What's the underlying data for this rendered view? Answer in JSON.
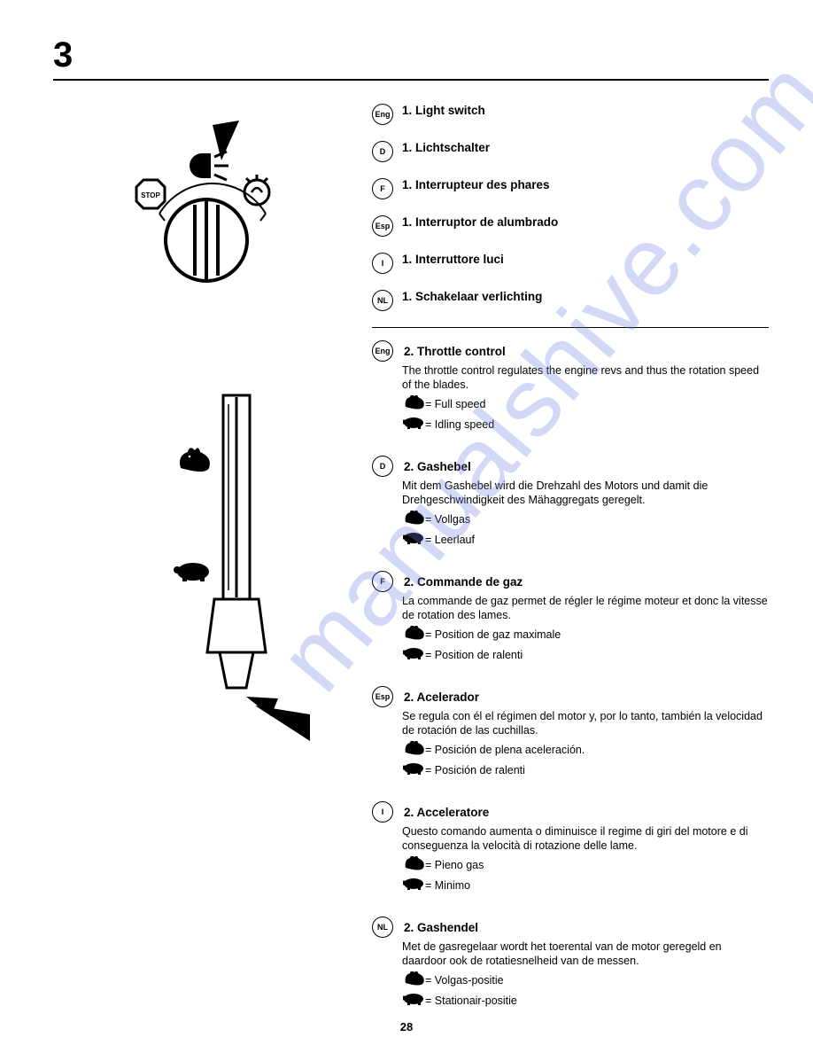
{
  "chapter_number": "3",
  "page_number": "28",
  "watermark_text": "manualshive.com",
  "watermark_color": "#6d7fe0",
  "section1": {
    "items": [
      {
        "code": "Eng",
        "title": "1. Light switch"
      },
      {
        "code": "D",
        "title": "1. Lichtschalter"
      },
      {
        "code": "F",
        "title": "1. Interrupteur des phares"
      },
      {
        "code": "Esp",
        "title": "1. Interruptor de alumbrado"
      },
      {
        "code": "I",
        "title": "1. Interruttore luci"
      },
      {
        "code": "NL",
        "title": "1. Schakelaar verlichting"
      }
    ]
  },
  "section2": {
    "blocks": [
      {
        "code": "Eng",
        "title": "2. Throttle control",
        "desc": "The throttle control regulates the engine revs and thus the rotation speed of the blades.",
        "full": "= Full speed",
        "idle": "= Idling speed"
      },
      {
        "code": "D",
        "title": "2. Gashebel",
        "desc": "Mit dem Gashebel wird die Drehzahl des Motors und damit die Drehgeschwindigkeit des Mähaggregats geregelt.",
        "full": "= Vollgas",
        "idle": "= Leerlauf"
      },
      {
        "code": "F",
        "title": "2. Commande de gaz",
        "desc": "La commande de gaz permet de régler le régime moteur et donc la vitesse de rotation des lames.",
        "full": "= Position de gaz maximale",
        "idle": "= Position de ralenti"
      },
      {
        "code": "Esp",
        "title": "2. Acelerador",
        "desc": "Se regula con él el régimen del motor y, por lo tanto, también la velocidad de rotación de las cuchillas.",
        "full": "= Posición de plena aceleración.",
        "idle": "= Posición de ralenti"
      },
      {
        "code": "I",
        "title": "2. Acceleratore",
        "desc": "Questo comando aumenta o diminuisce il regime di giri del motore e di conseguenza la velocità di rotazione delle lame.",
        "full": "= Pieno gas",
        "idle": "= Minimo"
      },
      {
        "code": "NL",
        "title": "2. Gashendel",
        "desc": "Met de gasregelaar wordt het toerental van de motor geregeld en daardoor ook de rotatiesnelheid van de messen.",
        "full": "= Volgas-positie",
        "idle": "= Stationair-positie"
      }
    ]
  },
  "diagram_top": {
    "stop_label": "STOP"
  }
}
